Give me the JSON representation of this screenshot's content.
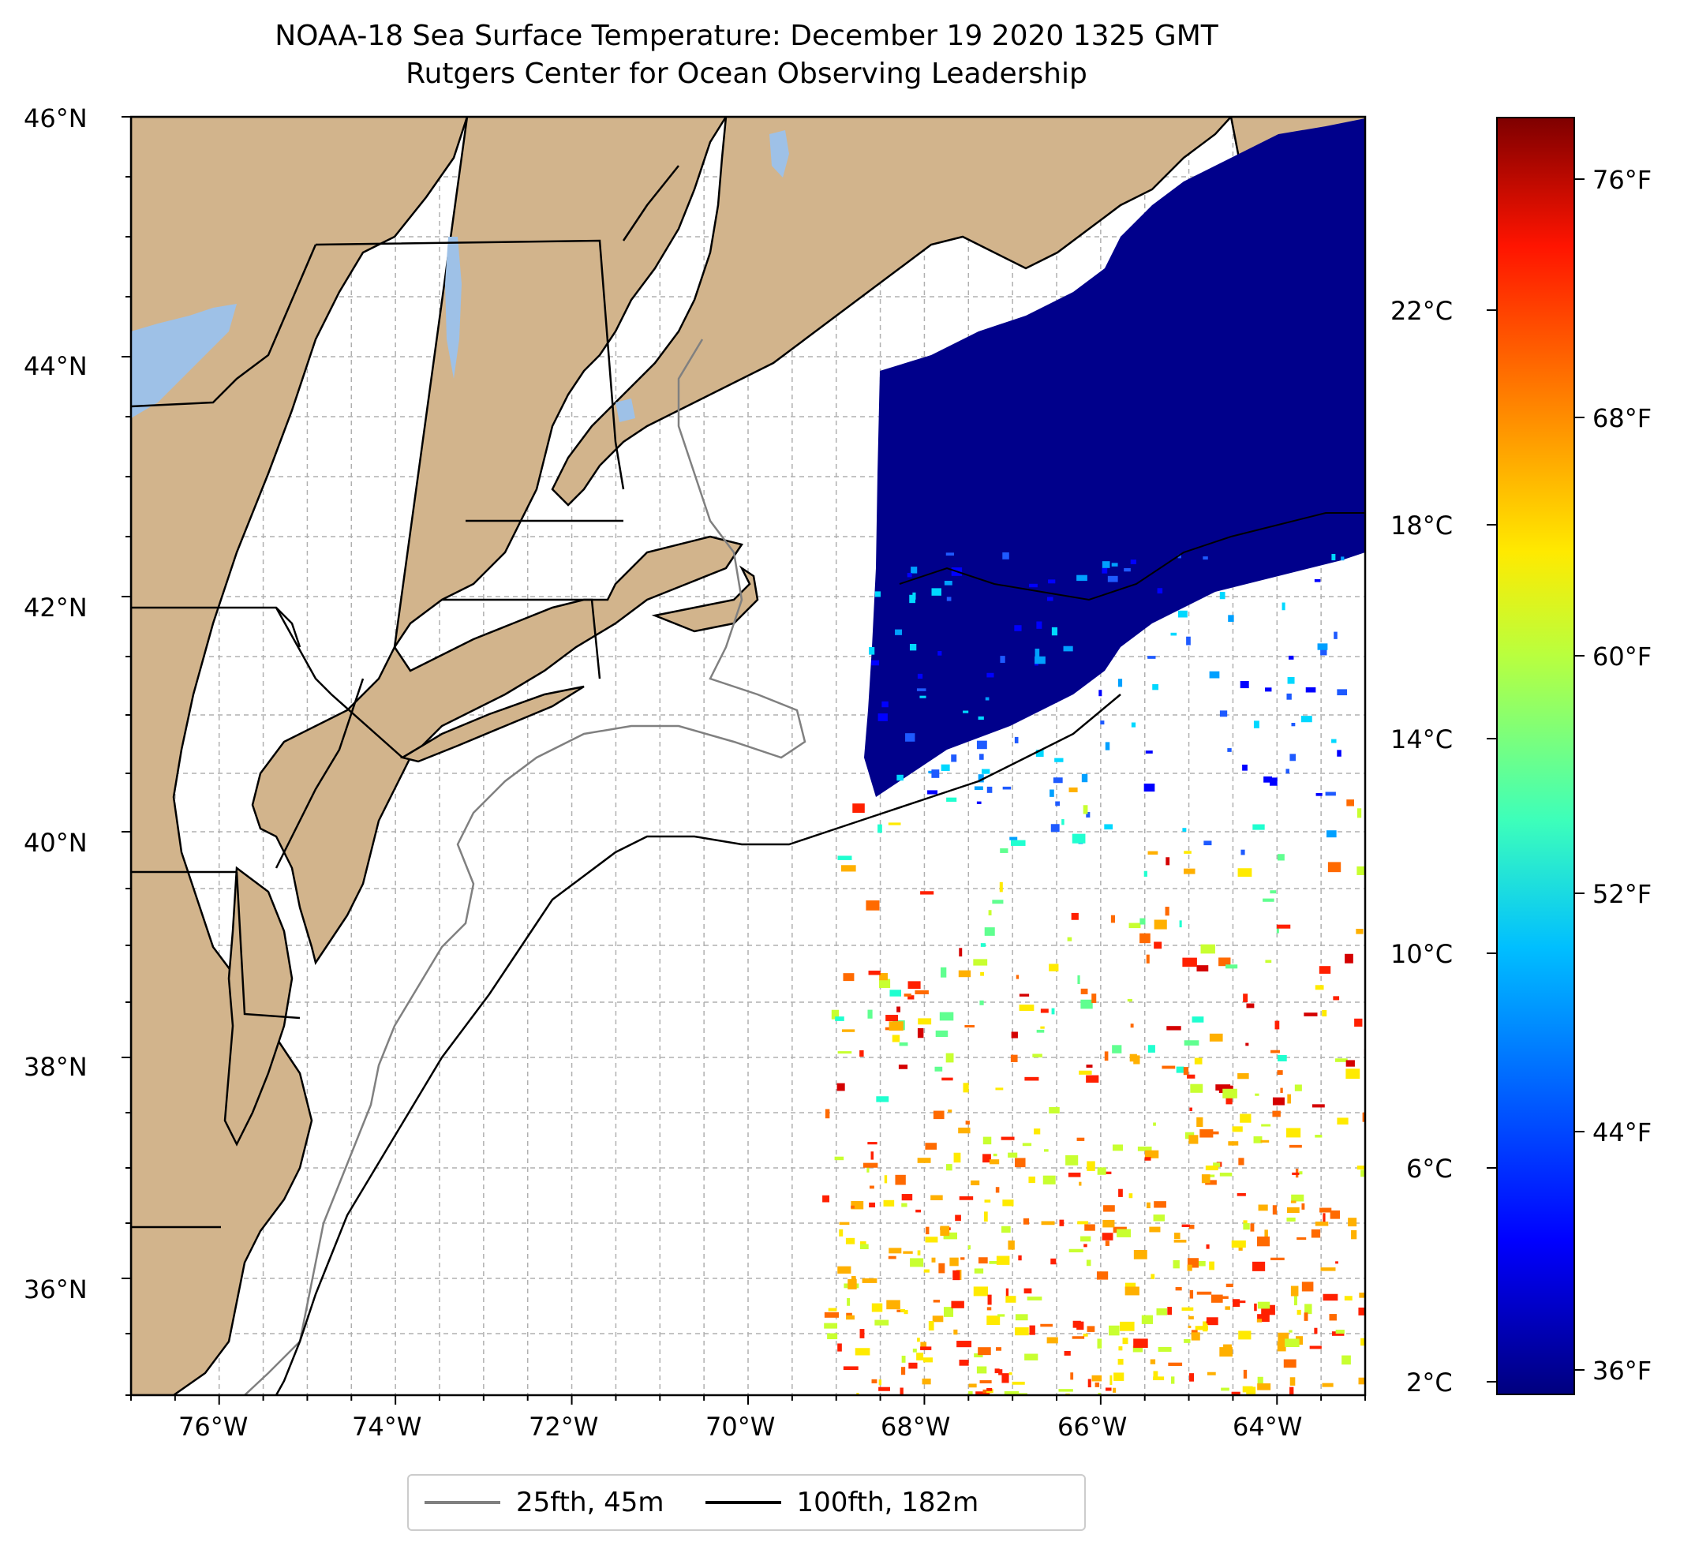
{
  "title": {
    "line1": "NOAA-18 Sea Surface Temperature: December 19 2020 1325 GMT",
    "line2": "Rutgers Center for Ocean Observing Leadership"
  },
  "map": {
    "lat_labels": [
      "46°N",
      "44°N",
      "42°N",
      "40°N",
      "38°N",
      "36°N"
    ],
    "lon_labels": [
      "76°W",
      "74°W",
      "72°W",
      "70°W",
      "68°W",
      "66°W",
      "64°W"
    ],
    "colors": {
      "land": "#d2b48c",
      "lakes": "#9ec1e7",
      "cold_water": "#00008b",
      "no_data": "#ffffff",
      "grid": "#b0b0b0"
    }
  },
  "legend": {
    "items": [
      {
        "label": "25fth, 45m",
        "color": "#808080"
      },
      {
        "label": "100fth, 182m",
        "color": "#000000"
      }
    ]
  },
  "colorbar": {
    "celsius_labels": [
      "22°C",
      "18°C",
      "14°C",
      "10°C",
      "6°C",
      "2°C"
    ],
    "fahrenheit_labels": [
      "76°F",
      "68°F",
      "60°F",
      "52°F",
      "44°F",
      "36°F"
    ],
    "colormap": "jet"
  }
}
